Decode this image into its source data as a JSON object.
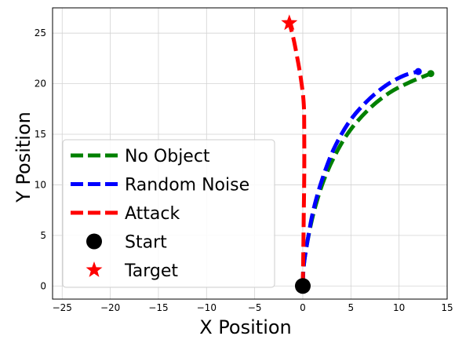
{
  "chart_data": {
    "type": "line",
    "title": "",
    "xlabel": "X Position",
    "ylabel": "Y Position",
    "xlim": [
      -26,
      15
    ],
    "ylim": [
      -1.3,
      27.5
    ],
    "xticks": [
      -25,
      -20,
      -15,
      -10,
      -5,
      0,
      5,
      10,
      15
    ],
    "yticks": [
      0,
      5,
      10,
      15,
      20,
      25
    ],
    "grid": true,
    "legend_position": "lower-left",
    "series": [
      {
        "name": "No Object",
        "color": "#008000",
        "style": "dashed",
        "end_marker": "circle",
        "points": [
          [
            0,
            0
          ],
          [
            0.1,
            2
          ],
          [
            0.5,
            4.5
          ],
          [
            1.2,
            7.5
          ],
          [
            2.2,
            10.5
          ],
          [
            3.5,
            13.2
          ],
          [
            5.0,
            15.5
          ],
          [
            7.0,
            17.6
          ],
          [
            9.0,
            19.1
          ],
          [
            11.0,
            20.1
          ],
          [
            13.3,
            21.0
          ]
        ]
      },
      {
        "name": "Random Noise",
        "color": "#0000ff",
        "style": "dashed",
        "end_marker": "circle",
        "points": [
          [
            0,
            0
          ],
          [
            0.1,
            2
          ],
          [
            0.5,
            4.5
          ],
          [
            1.1,
            7.5
          ],
          [
            2.0,
            10.5
          ],
          [
            3.2,
            13.5
          ],
          [
            4.8,
            16.2
          ],
          [
            6.6,
            18.2
          ],
          [
            8.6,
            19.8
          ],
          [
            10.5,
            20.8
          ],
          [
            12.0,
            21.2
          ]
        ]
      },
      {
        "name": "Attack",
        "color": "#ff0000",
        "style": "dashed",
        "end_marker": "star",
        "points": [
          [
            0,
            0
          ],
          [
            0.05,
            3
          ],
          [
            0.1,
            7
          ],
          [
            0.15,
            11
          ],
          [
            0.15,
            15
          ],
          [
            0.1,
            18
          ],
          [
            -0.2,
            20.5
          ],
          [
            -0.6,
            22.7
          ],
          [
            -1.0,
            24.6
          ],
          [
            -1.4,
            26.0
          ]
        ]
      },
      {
        "name": "Start",
        "color": "#000000",
        "style": "marker",
        "marker": "circle",
        "points": [
          [
            0,
            0
          ]
        ]
      },
      {
        "name": "Target",
        "color": "#ff0000",
        "style": "marker",
        "marker": "star",
        "points": [
          [
            -1.4,
            26.0
          ]
        ]
      }
    ]
  }
}
